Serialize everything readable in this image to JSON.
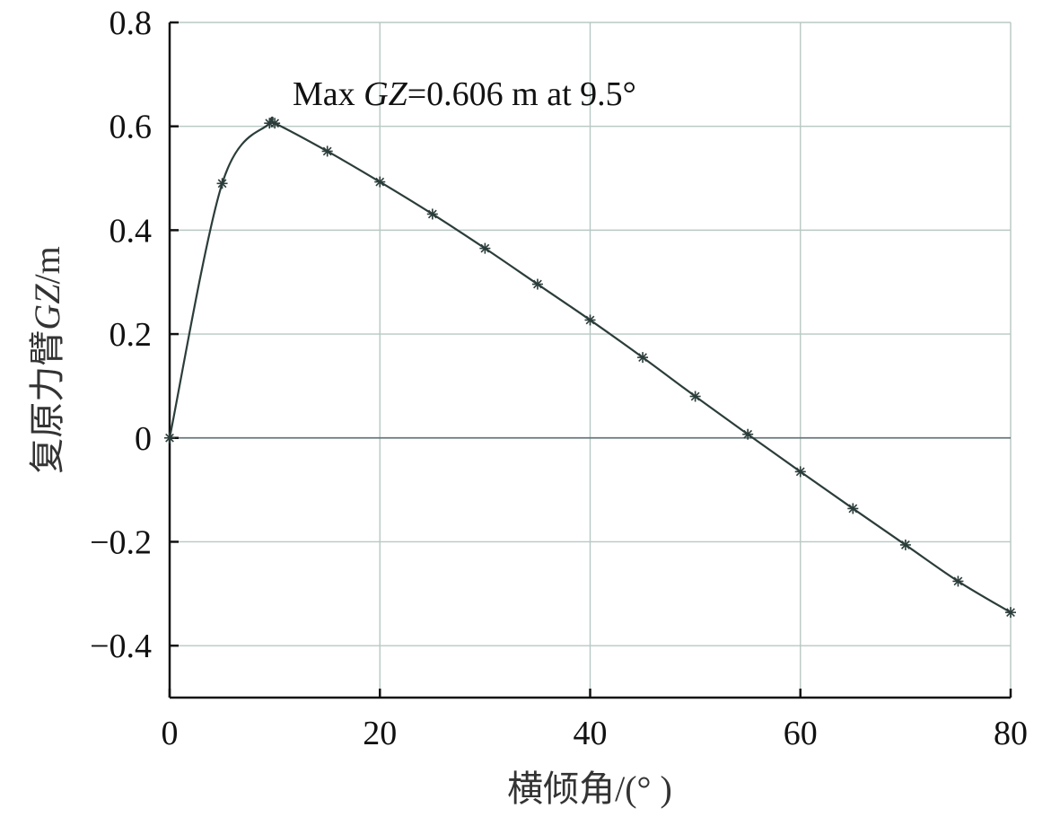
{
  "chart_data": {
    "type": "line",
    "xlabel": "横倾角/(° )",
    "ylabel": "复原力臂GZ/m",
    "xlim": [
      0,
      80
    ],
    "ylim": [
      -0.5,
      0.8
    ],
    "x_ticks": [
      "0",
      "20",
      "40",
      "60",
      "80"
    ],
    "y_ticks": [
      "0.8",
      "0.6",
      "0.4",
      "0.2",
      "0",
      "−0.2",
      "−0.4"
    ],
    "grid": true,
    "annotation": "Max GZ=0.606 m at 9.5°",
    "series": [
      {
        "marker": "asterisk",
        "x": [
          0,
          5,
          9.5,
          10,
          15,
          20,
          25,
          30,
          35,
          40,
          45,
          50,
          55,
          60,
          65,
          70,
          75,
          80
        ],
        "y": [
          0.0,
          0.49,
          0.606,
          0.606,
          0.552,
          0.493,
          0.431,
          0.365,
          0.296,
          0.227,
          0.155,
          0.08,
          0.007,
          -0.065,
          -0.136,
          -0.206,
          -0.276,
          -0.336
        ]
      }
    ]
  }
}
